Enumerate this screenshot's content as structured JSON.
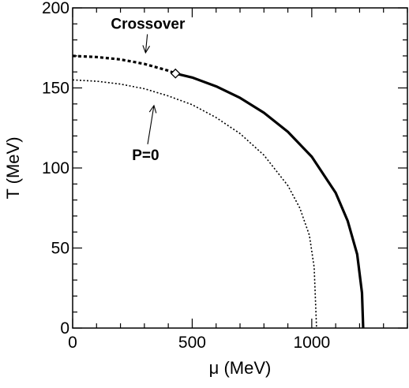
{
  "chart_data": {
    "type": "line",
    "xlabel": "μ (MeV)",
    "ylabel": "T (MeV)",
    "xlim": [
      0,
      1400
    ],
    "ylim": [
      0,
      200
    ],
    "x_ticks": [
      0,
      500,
      1000
    ],
    "y_ticks": [
      0,
      50,
      100,
      150,
      200
    ],
    "grid": false,
    "series": [
      {
        "style": "thick-dashed",
        "x": [
          0,
          100,
          200,
          300,
          400,
          430
        ],
        "y": [
          170,
          169.3,
          167.8,
          165.0,
          160.8,
          159
        ]
      },
      {
        "style": "thick-solid",
        "x": [
          430,
          500,
          600,
          700,
          800,
          900,
          1000,
          1100,
          1150,
          1190,
          1210,
          1215
        ],
        "y": [
          159,
          156.5,
          151.0,
          143.8,
          134.5,
          122.6,
          107.0,
          84.5,
          67.0,
          46.0,
          22.0,
          0
        ]
      },
      {
        "style": "thin-dotted",
        "x": [
          0,
          100,
          200,
          300,
          400,
          500,
          600,
          700,
          800,
          900,
          950,
          990,
          1010,
          1020
        ],
        "y": [
          155,
          154.2,
          152.4,
          149.5,
          145.0,
          139.5,
          131.5,
          121.5,
          108.0,
          89.0,
          75.0,
          58.0,
          38.0,
          0
        ]
      }
    ],
    "marker": {
      "x": 430,
      "y": 159,
      "shape": "diamond"
    },
    "annotations": [
      {
        "text": "Crossover",
        "text_x": 315,
        "text_y": 187,
        "arrow_x": 305,
        "arrow_y": 172
      },
      {
        "text": "P=0",
        "text_x": 305,
        "text_y": 105,
        "arrow_x": 340,
        "arrow_y": 139
      }
    ]
  }
}
